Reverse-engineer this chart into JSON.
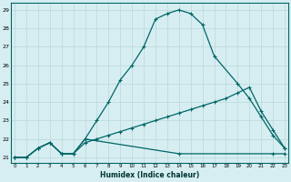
{
  "xlabel": "Humidex (Indice chaleur)",
  "bg_color": "#d6eef2",
  "grid_color": "#b8d8d8",
  "line_color": "#006666",
  "xlim": [
    0,
    23
  ],
  "ylim": [
    21,
    29
  ],
  "xtick_labels": [
    "0",
    "1",
    "2",
    "3",
    "4",
    "5",
    "6",
    "7",
    "8",
    "9",
    "10",
    "11",
    "12",
    "13",
    "14",
    "15",
    "16",
    "17",
    "18",
    "19",
    "20",
    "21",
    "22",
    "23"
  ],
  "ytick_labels": [
    "21",
    "22",
    "23",
    "24",
    "25",
    "26",
    "27",
    "28",
    "29"
  ],
  "line1_x": [
    0,
    1,
    2,
    3,
    4,
    5,
    6,
    7,
    8,
    9,
    10,
    11,
    12,
    13,
    14,
    15,
    16,
    17,
    19,
    20,
    21,
    22,
    23
  ],
  "line1_y": [
    21.0,
    21.0,
    21.5,
    21.8,
    21.2,
    21.2,
    22.0,
    23.0,
    24.0,
    25.2,
    26.0,
    27.0,
    28.5,
    28.8,
    29.0,
    28.8,
    28.2,
    26.5,
    25.0,
    24.2,
    23.2,
    22.2,
    21.5
  ],
  "line2_x": [
    0,
    1,
    2,
    3,
    4,
    5,
    6,
    7,
    8,
    9,
    10,
    11,
    12,
    13,
    14,
    15,
    16,
    17,
    18,
    19,
    20,
    21,
    22,
    23
  ],
  "line2_y": [
    21.0,
    21.0,
    21.5,
    21.8,
    21.2,
    21.2,
    21.8,
    22.0,
    22.2,
    22.4,
    22.6,
    22.8,
    23.0,
    23.2,
    23.4,
    23.6,
    23.8,
    24.0,
    24.2,
    24.5,
    24.8,
    23.5,
    22.5,
    21.5
  ],
  "line3_x": [
    0,
    1,
    2,
    3,
    4,
    5,
    6,
    14,
    22,
    23
  ],
  "line3_y": [
    21.0,
    21.0,
    21.5,
    21.8,
    21.2,
    21.2,
    22.0,
    21.2,
    21.2,
    21.2
  ]
}
